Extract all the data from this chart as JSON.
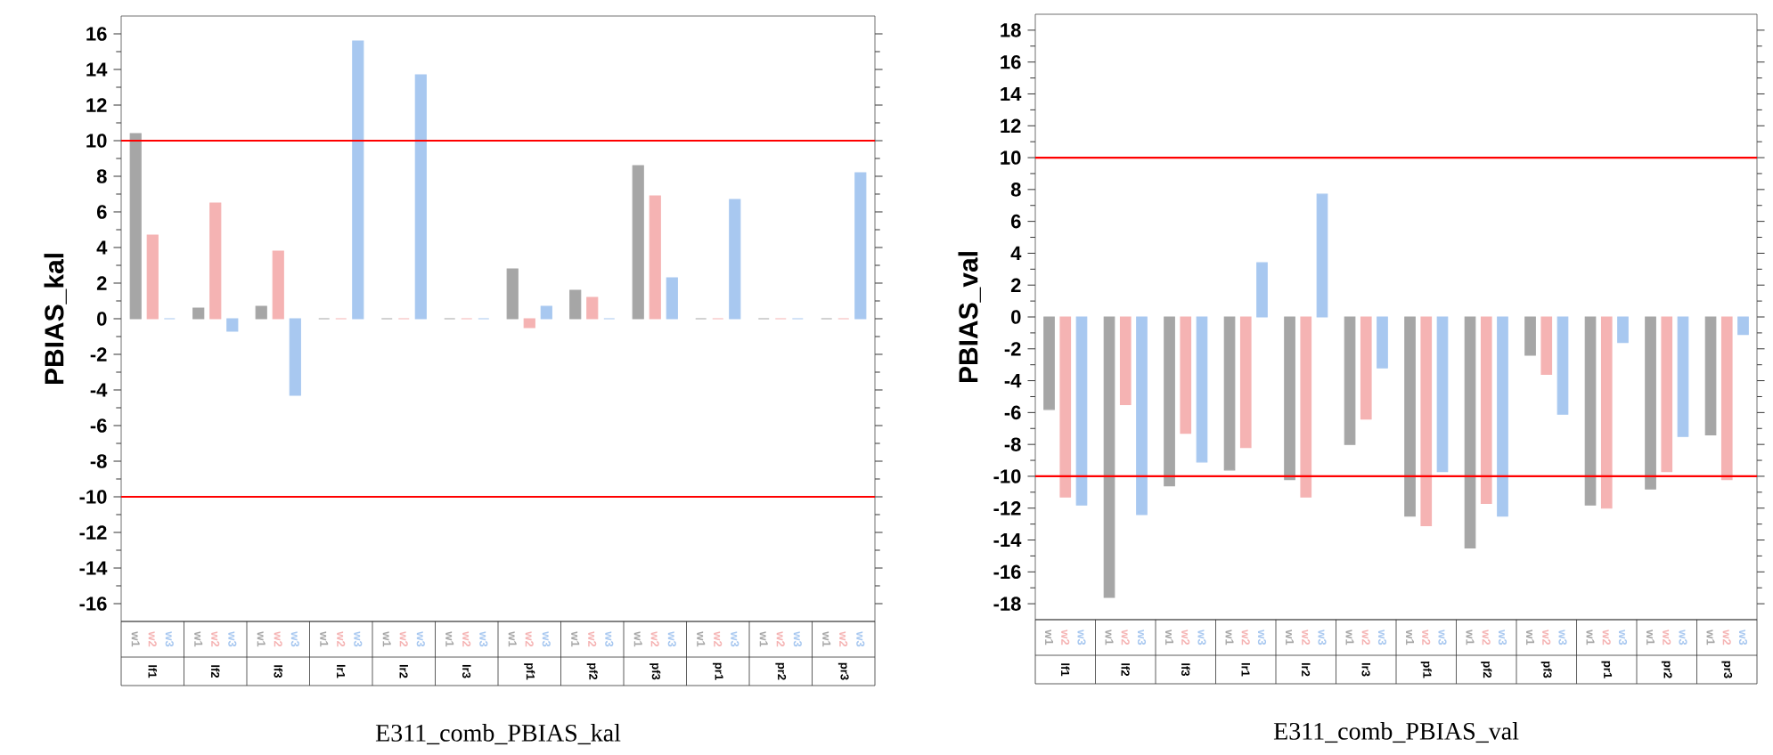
{
  "chart_data": [
    {
      "type": "bar",
      "ylabel": "PBIAS_kal",
      "xlabel": "E311_comb_PBIAS_kal",
      "categories": [
        "lf1",
        "lf2",
        "lf3",
        "lr1",
        "lr2",
        "lr3",
        "pf1",
        "pf2",
        "pf3",
        "pr1",
        "pr2",
        "pr3"
      ],
      "series": [
        {
          "name": "w1",
          "color": "#a6a6a6",
          "values": [
            10.4,
            0.6,
            0.7,
            0,
            0,
            0,
            2.8,
            1.6,
            8.6,
            0,
            0,
            0
          ]
        },
        {
          "name": "w2",
          "color": "#f5b3b3",
          "values": [
            4.7,
            6.5,
            3.8,
            0,
            0,
            0,
            -0.5,
            1.2,
            6.9,
            0,
            0,
            0
          ]
        },
        {
          "name": "w3",
          "color": "#a8c8f0",
          "values": [
            0,
            -0.7,
            -4.3,
            15.6,
            13.7,
            0,
            0.7,
            0,
            2.3,
            6.7,
            0,
            8.2
          ]
        }
      ],
      "ylim": [
        -17,
        17
      ],
      "yticks": [
        -16,
        -14,
        -12,
        -10,
        -8,
        -6,
        -4,
        -2,
        0,
        2,
        4,
        6,
        8,
        10,
        12,
        14,
        16
      ],
      "ref_lines": [
        {
          "axis": "y",
          "value": 10,
          "color": "#ff0000"
        },
        {
          "axis": "y",
          "value": -10,
          "color": "#ff0000"
        }
      ]
    },
    {
      "type": "bar",
      "ylabel": "PBIAS_val",
      "xlabel": "E311_comb_PBIAS_val",
      "categories": [
        "lf1",
        "lf2",
        "lf3",
        "lr1",
        "lr2",
        "lr3",
        "pf1",
        "pf2",
        "pf3",
        "pr1",
        "pr2",
        "pr3"
      ],
      "series": [
        {
          "name": "w1",
          "color": "#a6a6a6",
          "values": [
            -5.8,
            -17.6,
            -10.6,
            -9.6,
            -10.2,
            -8.0,
            -12.5,
            -14.5,
            -2.4,
            -11.8,
            -10.8,
            -7.4
          ]
        },
        {
          "name": "w2",
          "color": "#f5b3b3",
          "values": [
            -11.3,
            -5.5,
            -7.3,
            -8.2,
            -11.3,
            -6.4,
            -13.1,
            -11.7,
            -3.6,
            -12.0,
            -9.7,
            -10.2
          ]
        },
        {
          "name": "w3",
          "color": "#a8c8f0",
          "values": [
            -11.8,
            -12.4,
            -9.1,
            3.4,
            7.7,
            -3.2,
            -9.7,
            -12.5,
            -6.1,
            -1.6,
            -7.5,
            -1.1
          ]
        }
      ],
      "ylim": [
        -19,
        19
      ],
      "yticks": [
        -18,
        -16,
        -14,
        -12,
        -10,
        -8,
        -6,
        -4,
        -2,
        0,
        2,
        4,
        6,
        8,
        10,
        12,
        14,
        16,
        18
      ],
      "ref_lines": [
        {
          "axis": "y",
          "value": 10,
          "color": "#ff0000"
        },
        {
          "axis": "y",
          "value": -10,
          "color": "#ff0000"
        }
      ]
    }
  ]
}
